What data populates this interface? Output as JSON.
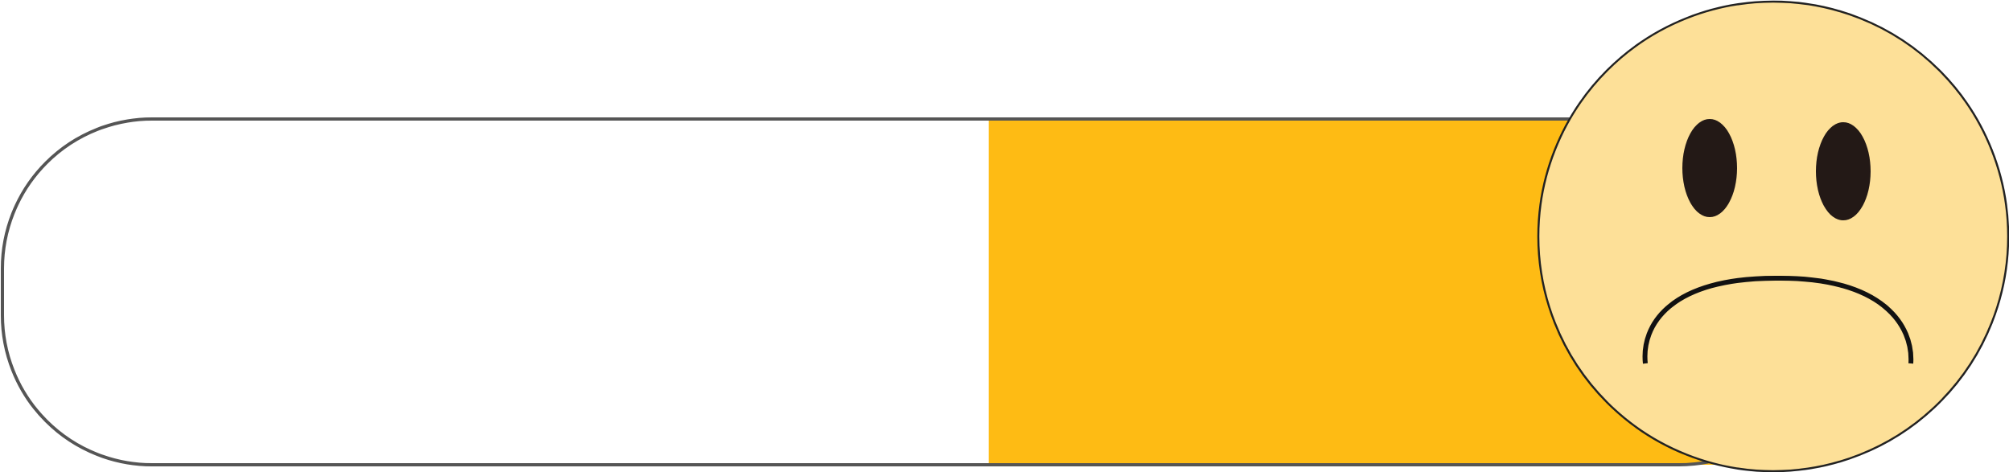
{
  "meter": {
    "level_fraction": 0.46,
    "colors": {
      "track_fill": "#ffffff",
      "track_border": "#555555",
      "level_fill": "#febb14"
    }
  },
  "face": {
    "expression": "sad",
    "icon": "sad-face-icon",
    "colors": {
      "face_fill": "#fde098",
      "outline": "#222222",
      "eyes": "#231916",
      "mouth": "#111111"
    }
  }
}
